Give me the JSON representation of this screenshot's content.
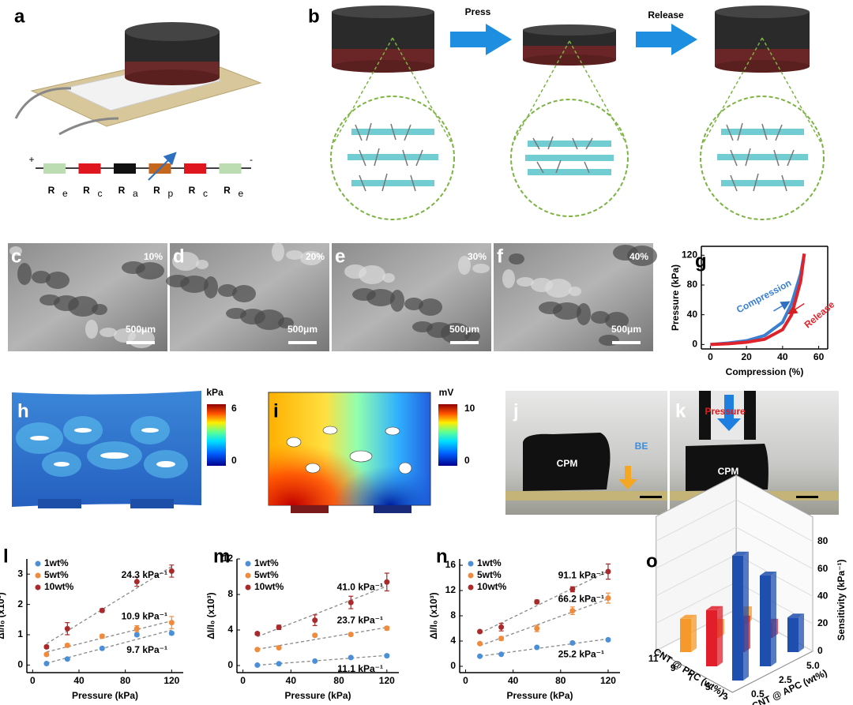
{
  "panel_a": {
    "label": "a",
    "polarity": [
      "+",
      "-"
    ],
    "resistors": [
      {
        "main": "R",
        "sub": "e",
        "color": "#bcdcb2"
      },
      {
        "main": "R",
        "sub": "c",
        "color": "#e0161f"
      },
      {
        "main": "R",
        "sub": "a",
        "color": "#111111"
      },
      {
        "main": "R",
        "sub": "p",
        "color": "#c5661f"
      },
      {
        "main": "R",
        "sub": "c",
        "color": "#e0161f"
      },
      {
        "main": "R",
        "sub": "e",
        "color": "#bcdcb2"
      }
    ]
  },
  "panel_b": {
    "label": "b",
    "steps": [
      "Press",
      "Release"
    ]
  },
  "sem": [
    {
      "label": "c",
      "porosity": "10%",
      "scale_bar": "500μm"
    },
    {
      "label": "d",
      "porosity": "20%",
      "scale_bar": "500μm"
    },
    {
      "label": "e",
      "porosity": "30%",
      "scale_bar": "500μm"
    },
    {
      "label": "f",
      "porosity": "40%",
      "scale_bar": "500μm"
    }
  ],
  "panel_h": {
    "label": "h",
    "unit": "kPa",
    "ticks": [
      0,
      6
    ]
  },
  "panel_i": {
    "label": "i",
    "unit": "mV",
    "ticks": [
      0,
      10
    ]
  },
  "panel_j": {
    "label": "j",
    "sample": "CPM",
    "electrode": "BE"
  },
  "panel_k": {
    "label": "k",
    "force": "Pressure",
    "sample": "CPM"
  },
  "chart_data": [
    {
      "type": "line",
      "panel_label": "g",
      "xlabel": "Compression (%)",
      "ylabel": "Pressure (kPa)",
      "x": [
        0,
        10,
        20,
        30,
        40,
        45,
        50,
        52
      ],
      "xlim": [
        -5,
        65
      ],
      "xticks": [
        0,
        20,
        40,
        60
      ],
      "ylim": [
        -6,
        132
      ],
      "yticks": [
        0,
        40,
        80,
        120
      ],
      "series": [
        {
          "name": "Compression",
          "color": "#3a7fd0",
          "values": [
            0,
            2,
            5,
            12,
            30,
            55,
            95,
            122
          ]
        },
        {
          "name": "Release",
          "color": "#e0222a",
          "values": [
            0,
            1,
            3,
            7,
            20,
            40,
            85,
            122
          ]
        }
      ]
    },
    {
      "type": "scatter",
      "panel_label": "l",
      "xlabel": "Pressure (kPa)",
      "ylabel": "ΔI/I₀ (x10³)",
      "x": [
        12,
        30,
        60,
        90,
        120
      ],
      "xlim": [
        -5,
        130
      ],
      "xticks": [
        0,
        40,
        80,
        120
      ],
      "ylim": [
        -0.25,
        3.5
      ],
      "yticks": [
        0,
        1,
        2,
        3
      ],
      "series": [
        {
          "name": "1wt%",
          "color": "#4a8fd8",
          "values": [
            0.05,
            0.2,
            0.55,
            1.0,
            1.05
          ],
          "errors": [
            0.03,
            0.04,
            0.04,
            0.05,
            0.05
          ],
          "sensitivity_label": "9.7 kPa⁻¹"
        },
        {
          "name": "5wt%",
          "color": "#f08a3c",
          "values": [
            0.35,
            0.65,
            0.95,
            1.2,
            1.4
          ],
          "errors": [
            0.05,
            0.05,
            0.06,
            0.1,
            0.2
          ],
          "sensitivity_label": "10.9 kPa⁻¹"
        },
        {
          "name": "10wt%",
          "color": "#a82a2a",
          "values": [
            0.6,
            1.2,
            1.8,
            2.75,
            3.1
          ],
          "errors": [
            0.05,
            0.2,
            0.06,
            0.15,
            0.2
          ],
          "sensitivity_label": "24.3 kPa⁻¹"
        }
      ]
    },
    {
      "type": "scatter",
      "panel_label": "m",
      "xlabel": "Pressure (kPa)",
      "ylabel": "ΔI/I₀ (x10³)",
      "x": [
        12,
        30,
        60,
        90,
        120
      ],
      "xlim": [
        -5,
        130
      ],
      "xticks": [
        0,
        40,
        80,
        120
      ],
      "ylim": [
        -0.8,
        12
      ],
      "yticks": [
        0,
        4,
        8,
        12
      ],
      "series": [
        {
          "name": "1wt%",
          "color": "#4a8fd8",
          "values": [
            0.05,
            0.2,
            0.5,
            0.9,
            1.1
          ],
          "errors": [
            0.08,
            0.1,
            0.1,
            0.12,
            0.15
          ],
          "sensitivity_label": "11.1 kPa⁻¹"
        },
        {
          "name": "5wt%",
          "color": "#f08a3c",
          "values": [
            1.8,
            2.0,
            3.4,
            3.5,
            4.2
          ],
          "errors": [
            0.1,
            0.12,
            0.15,
            0.15,
            0.2
          ],
          "sensitivity_label": "23.7 kPa⁻¹"
        },
        {
          "name": "10wt%",
          "color": "#a82a2a",
          "values": [
            3.6,
            4.3,
            5.1,
            7.1,
            9.4
          ],
          "errors": [
            0.15,
            0.25,
            0.6,
            0.7,
            1.0
          ],
          "sensitivity_label": "41.0 kPa⁻¹"
        }
      ]
    },
    {
      "type": "scatter",
      "panel_label": "n",
      "xlabel": "Pressure (kPa)",
      "ylabel": "ΔI/I₀ (x10³)",
      "x": [
        12,
        30,
        60,
        90,
        120
      ],
      "xlim": [
        -5,
        130
      ],
      "xticks": [
        0,
        40,
        80,
        120
      ],
      "ylim": [
        -1,
        17
      ],
      "yticks": [
        0,
        4,
        8,
        12,
        16
      ],
      "series": [
        {
          "name": "1wt%",
          "color": "#4a8fd8",
          "values": [
            1.6,
            1.9,
            3.0,
            3.7,
            4.2
          ],
          "errors": [
            0.1,
            0.15,
            0.15,
            0.2,
            0.2
          ],
          "sensitivity_label": "25.2 kPa⁻¹"
        },
        {
          "name": "5wt%",
          "color": "#f08a3c",
          "values": [
            3.6,
            4.4,
            6.0,
            8.8,
            10.8
          ],
          "errors": [
            0.15,
            0.3,
            0.5,
            0.6,
            0.8
          ],
          "sensitivity_label": "66.2 kPa⁻¹"
        },
        {
          "name": "10wt%",
          "color": "#a82a2a",
          "values": [
            5.5,
            6.2,
            10.2,
            12.2,
            15.0
          ],
          "errors": [
            0.2,
            0.6,
            0.3,
            0.4,
            1.2
          ],
          "sensitivity_label": "91.1 kPa⁻¹"
        }
      ]
    },
    {
      "type": "bar3d",
      "panel_label": "o",
      "xlabel": "CNT @ APC (wt%)",
      "depthlabel": "CNT @ PPC (wt%)",
      "zlabel": "Sensitivity (kPa⁻¹)",
      "categories": [
        "0.5",
        "2.5",
        "5.0"
      ],
      "depth_categories": [
        "11",
        "9",
        "7",
        "5",
        "3"
      ],
      "zlim": [
        0,
        95
      ],
      "zticks": [
        0,
        20,
        40,
        60,
        80
      ],
      "series": [
        {
          "color": "#f59a2a",
          "values": [
            24.3,
            10.9,
            9.7
          ]
        },
        {
          "color": "#e21e2a",
          "values": [
            41.0,
            23.7,
            11.1
          ]
        },
        {
          "color": "#1f4fae",
          "values": [
            91.1,
            66.2,
            25.2
          ]
        }
      ]
    }
  ]
}
